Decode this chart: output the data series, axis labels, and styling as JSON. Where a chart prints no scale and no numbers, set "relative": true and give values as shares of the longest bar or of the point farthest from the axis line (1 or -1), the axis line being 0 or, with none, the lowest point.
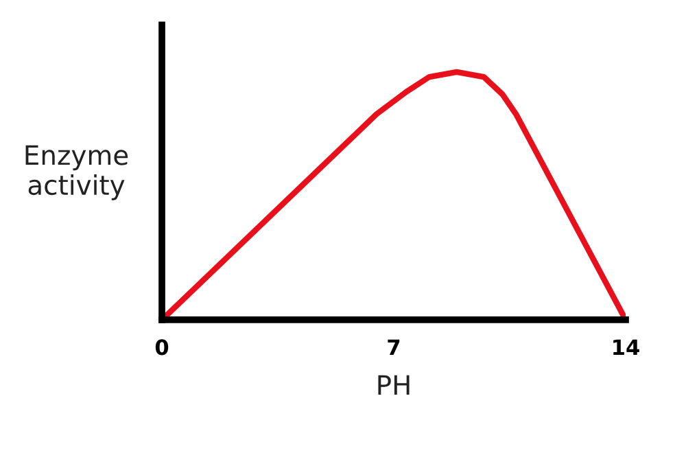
{
  "chart_data": {
    "type": "line",
    "xlabel": "PH",
    "ylabel": "Enzyme\nactivity",
    "relative": true,
    "x": [
      0,
      6.48,
      7.38,
      8.07,
      8.9,
      9.72,
      10.28,
      10.69,
      14
    ],
    "series": [
      {
        "color": "#e8101a",
        "values": [
          0,
          0.83,
          0.92,
          0.98,
          1,
          0.98,
          0.91,
          0.83,
          0
        ]
      }
    ],
    "xlim": [
      0,
      14
    ],
    "xticks": [
      0,
      7,
      14
    ],
    "grid": false,
    "legend": false,
    "marker": "none",
    "line_style": "solid"
  }
}
